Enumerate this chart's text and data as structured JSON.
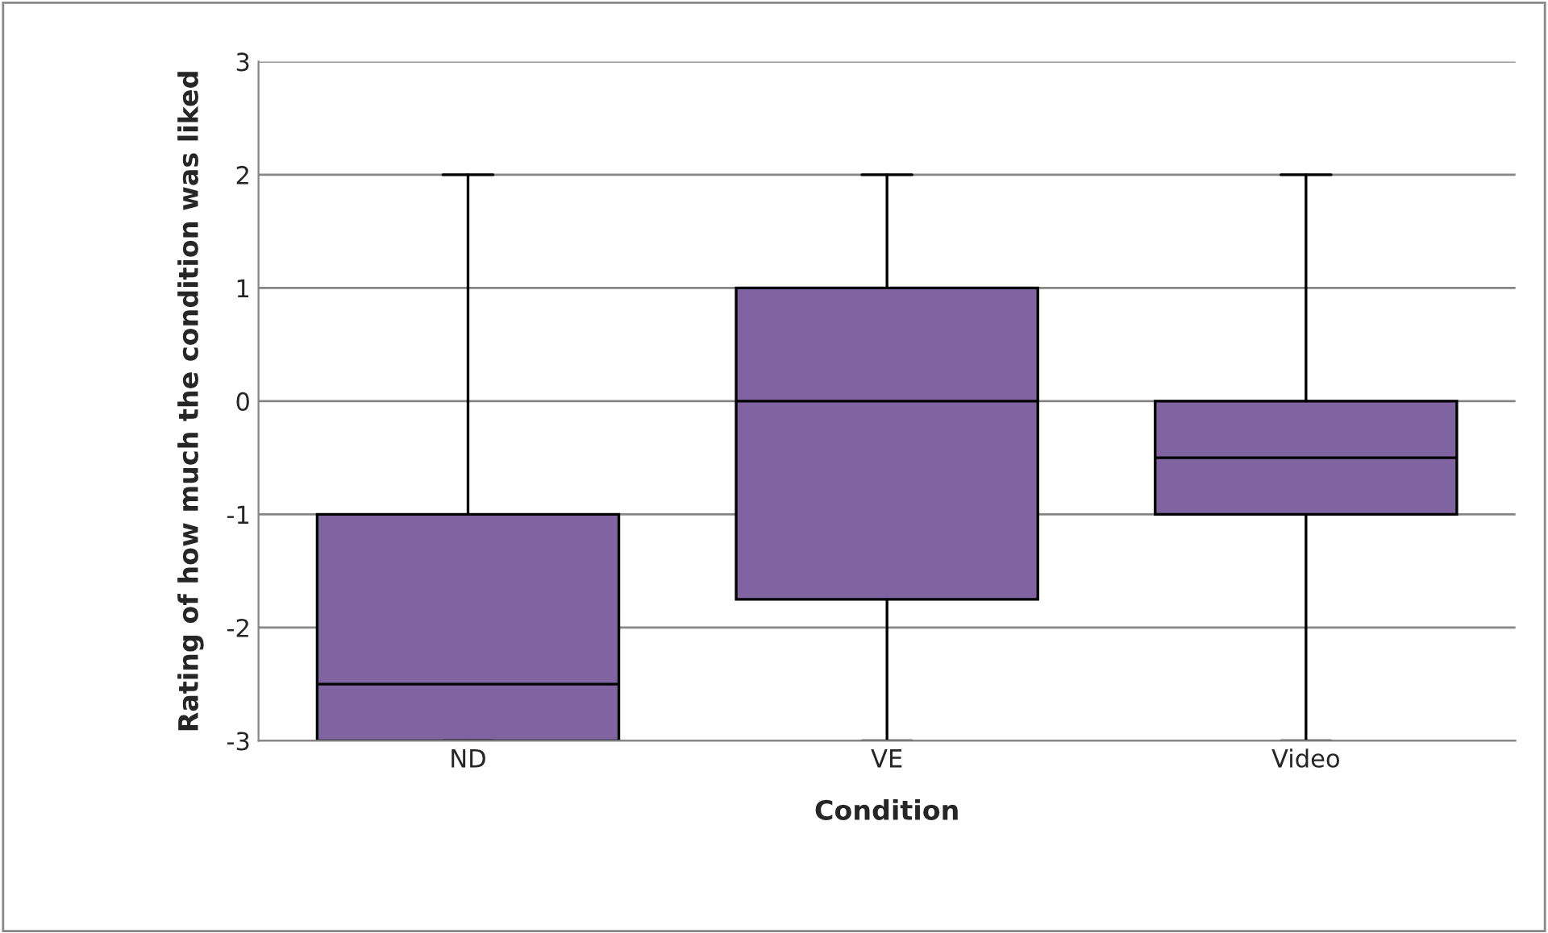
{
  "chart_data": {
    "type": "box",
    "xlabel": "Condition",
    "ylabel": "Rating of how much the condition was liked",
    "categories": [
      "ND",
      "VE",
      "Video"
    ],
    "boxes": [
      {
        "low": -3,
        "q1": -3,
        "median": -2.5,
        "q3": -1,
        "high": 2
      },
      {
        "low": -3,
        "q1": -1.75,
        "median": 0,
        "q3": 1,
        "high": 2
      },
      {
        "low": -3,
        "q1": -1,
        "median": -0.5,
        "q3": 0,
        "high": 2
      }
    ],
    "color": "#8064a2",
    "ylim": [
      -3,
      3
    ],
    "yticks": [
      -3,
      -2,
      -1,
      0,
      1,
      2,
      3
    ],
    "grid": "y",
    "legend": false
  }
}
